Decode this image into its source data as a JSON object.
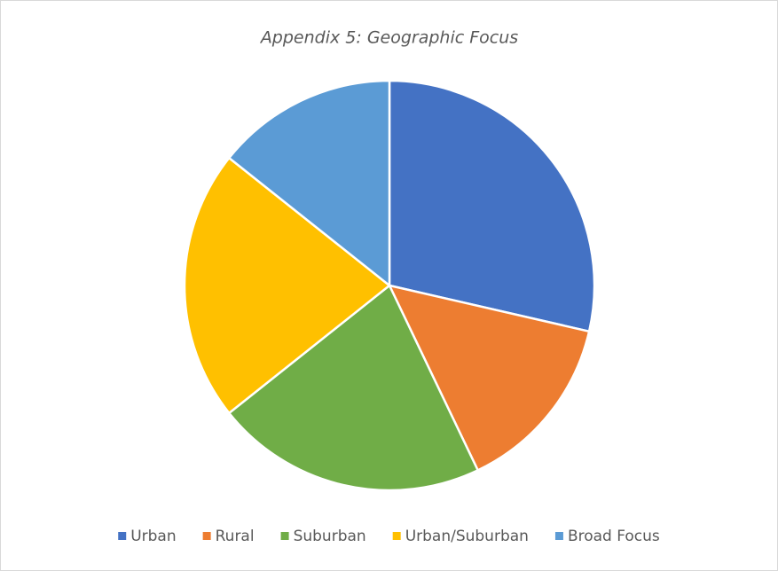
{
  "chart_data": {
    "type": "pie",
    "title": "Appendix 5: Geographic Focus",
    "categories": [
      "Urban",
      "Rural",
      "Suburban",
      "Urban/Suburban",
      "Broad Focus"
    ],
    "values": [
      28.6,
      14.3,
      21.4,
      21.4,
      14.3
    ],
    "colors": [
      "#4472c4",
      "#ed7d31",
      "#70ad47",
      "#ffc000",
      "#5b9bd5"
    ],
    "legend": "bottom"
  }
}
